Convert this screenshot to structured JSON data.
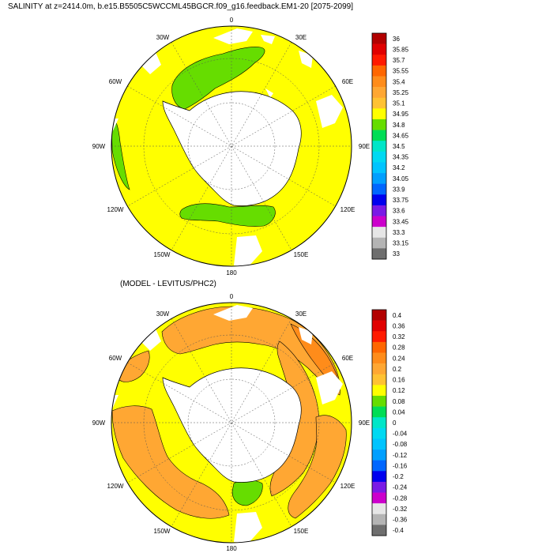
{
  "maps": [
    {
      "id": "salinity",
      "title": "SALINITY at z=2414.0m, b.e15.B5505C5WCCML45BGCR.f09_g16.feedback.EM1-20 [2075-2099]",
      "longitude_labels": [
        "0",
        "30E",
        "60E",
        "90E",
        "120E",
        "150E",
        "180",
        "150W",
        "120W",
        "90W",
        "60W",
        "30W"
      ],
      "colorbar_labels": [
        "36",
        "35.85",
        "35.7",
        "35.55",
        "35.4",
        "35.25",
        "35.1",
        "34.95",
        "34.8",
        "34.65",
        "34.5",
        "34.35",
        "34.2",
        "34.05",
        "33.9",
        "33.75",
        "33.6",
        "33.45",
        "33.3",
        "33.15",
        "33"
      ],
      "colorbar_colors": [
        "#b20000",
        "#e00000",
        "#ff1a00",
        "#ff6600",
        "#ff8c1a",
        "#ffa733",
        "#ffc233",
        "#ffff00",
        "#66dd00",
        "#00dd55",
        "#00e6c8",
        "#00d9f2",
        "#00c4ff",
        "#009fff",
        "#0066ff",
        "#0000ee",
        "#7a1ae6",
        "#cc00cc",
        "#e6e6e6",
        "#b4b4b4",
        "#6e6e6e"
      ],
      "background_color": "#ffff00",
      "patch_color": "#66dd00"
    },
    {
      "id": "difference",
      "title": "(MODEL - LEVITUS/PHC2)",
      "longitude_labels": [
        "0",
        "30E",
        "60E",
        "90E",
        "120E",
        "150E",
        "180",
        "150W",
        "120W",
        "90W",
        "60W",
        "30W"
      ],
      "colorbar_labels": [
        "0.4",
        "0.36",
        "0.32",
        "0.28",
        "0.24",
        "0.2",
        "0.16",
        "0.12",
        "0.08",
        "0.04",
        "0",
        "-0.04",
        "-0.08",
        "-0.12",
        "-0.16",
        "-0.2",
        "-0.24",
        "-0.28",
        "-0.32",
        "-0.36",
        "-0.4"
      ],
      "colorbar_colors": [
        "#b20000",
        "#e00000",
        "#ff1a00",
        "#ff6600",
        "#ff8c1a",
        "#ffa733",
        "#ffc233",
        "#ffff00",
        "#66dd00",
        "#00dd55",
        "#00e6c8",
        "#00d9f2",
        "#00c4ff",
        "#009fff",
        "#0066ff",
        "#0000ee",
        "#7a1ae6",
        "#cc00cc",
        "#e6e6e6",
        "#b4b4b4",
        "#6e6e6e"
      ],
      "background_color": "#ffff00",
      "patch_color": "#ffa733"
    }
  ]
}
